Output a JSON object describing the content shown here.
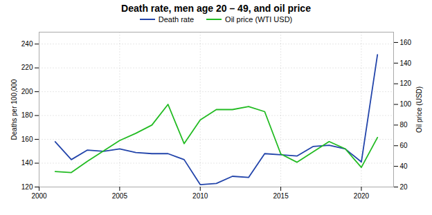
{
  "chart_data": {
    "type": "line",
    "title": "Death rate, men age 20 – 49, and oil price",
    "x": [
      2001,
      2002,
      2003,
      2004,
      2005,
      2006,
      2007,
      2008,
      2009,
      2010,
      2011,
      2012,
      2013,
      2014,
      2015,
      2016,
      2017,
      2018,
      2019,
      2020,
      2021
    ],
    "series": [
      {
        "name": "Death rate",
        "color": "#2244aa",
        "values": [
          158,
          143,
          151,
          150,
          152,
          149,
          148,
          148,
          143,
          122,
          123,
          129,
          128,
          148,
          147,
          146,
          154,
          155,
          152,
          141,
          231
        ]
      },
      {
        "name": "Oil price (WTI USD)",
        "color": "#22bb22",
        "axis": "y2",
        "values": [
          35,
          34,
          45,
          55,
          65,
          72,
          80,
          100,
          62,
          85,
          95,
          95,
          98,
          93,
          52,
          44,
          54,
          64,
          57,
          39,
          68
        ]
      }
    ],
    "ylabel": "Deaths per 100,000",
    "y2label": "Oil price (USD)",
    "xlim": [
      2000,
      2022
    ],
    "xticks": [
      2000,
      2005,
      2010,
      2015,
      2020
    ],
    "ylim": [
      120,
      250
    ],
    "yticks": [
      120,
      140,
      160,
      180,
      200,
      220,
      240
    ],
    "y2lim": [
      20,
      170
    ],
    "y2ticks": [
      20,
      40,
      60,
      80,
      100,
      120,
      140,
      160
    ],
    "grid": true,
    "legend": "top"
  }
}
